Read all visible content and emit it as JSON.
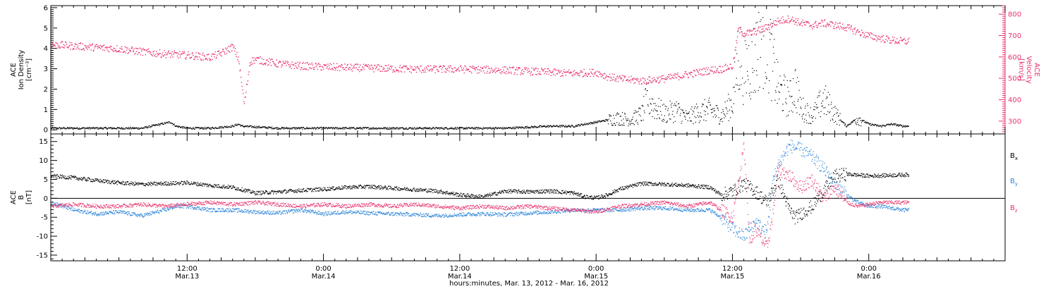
{
  "colors": {
    "black": "#000000",
    "pink": "#e8336b",
    "blue": "#2f86d9"
  },
  "x_axis": {
    "tick_labels": [
      {
        "time": "12:00",
        "date": "Mar.13",
        "hours": 12
      },
      {
        "time": "0:00",
        "date": "Mar.14",
        "hours": 24
      },
      {
        "time": "12:00",
        "date": "Mar.14",
        "hours": 36
      },
      {
        "time": "0:00",
        "date": "Mar.15",
        "hours": 48
      },
      {
        "time": "12:00",
        "date": "Mar.15",
        "hours": 60
      },
      {
        "time": "0:00",
        "date": "Mar.16",
        "hours": 72
      }
    ],
    "caption": "hours:minutes, Mar. 13, 2012 - Mar. 16, 2012"
  },
  "chart_data": [
    {
      "type": "scatter",
      "panel": "top",
      "left_axis": {
        "label_lines": [
          "ACE",
          "Ion Density",
          "[cm⁻³]"
        ],
        "ticks": [
          "0",
          "1",
          "2",
          "3",
          "4",
          "5",
          "6"
        ],
        "ylim": [
          -0.2,
          6.1
        ]
      },
      "right_axis": {
        "label_lines": [
          "ACE",
          "Velocity",
          "[km/s]"
        ],
        "ticks": [
          "300",
          "400",
          "500",
          "600",
          "700",
          "800"
        ],
        "ylim": [
          240,
          840
        ]
      },
      "xlim_hours": [
        0,
        84
      ],
      "series": [
        {
          "axis": "left",
          "color": "black",
          "points": [
            [
              0,
              0.1
            ],
            [
              4,
              0.1
            ],
            [
              8,
              0.1
            ],
            [
              10.5,
              0.4
            ],
            [
              11,
              0.2
            ],
            [
              12,
              0.1
            ],
            [
              14,
              0.1
            ],
            [
              16,
              0.2
            ],
            [
              16.5,
              0.3
            ],
            [
              16.8,
              0.2
            ],
            [
              20,
              0.1
            ],
            [
              24,
              0.1
            ],
            [
              28,
              0.1
            ],
            [
              32,
              0.1
            ],
            [
              36,
              0.1
            ],
            [
              40,
              0.1
            ],
            [
              42,
              0.15
            ],
            [
              44,
              0.2
            ],
            [
              46,
              0.2
            ],
            [
              47,
              0.3
            ],
            [
              48,
              0.4
            ],
            [
              49,
              0.5
            ],
            [
              50,
              0.6
            ],
            [
              51,
              0.5
            ],
            [
              52,
              0.8
            ],
            [
              52.5,
              1.6
            ],
            [
              53,
              1.2
            ],
            [
              54,
              0.8
            ],
            [
              55,
              1.0
            ],
            [
              56,
              0.6
            ],
            [
              57,
              0.9
            ],
            [
              58,
              1.0
            ],
            [
              59,
              0.7
            ],
            [
              60,
              1.4
            ],
            [
              60.5,
              3.8
            ],
            [
              61,
              3.0
            ],
            [
              62,
              3.5
            ],
            [
              62.5,
              5.2
            ],
            [
              63,
              4.5
            ],
            [
              64,
              2.0
            ],
            [
              65,
              1.5
            ],
            [
              65.5,
              2.2
            ],
            [
              66,
              1.1
            ],
            [
              67,
              0.7
            ],
            [
              68,
              1.5
            ],
            [
              69,
              0.8
            ],
            [
              70,
              0.2
            ],
            [
              71,
              0.6
            ],
            [
              72,
              0.3
            ],
            [
              73,
              0.2
            ],
            [
              74,
              0.3
            ],
            [
              75,
              0.2
            ]
          ]
        },
        {
          "axis": "right",
          "color": "pink",
          "points": [
            [
              0,
              660
            ],
            [
              3,
              650
            ],
            [
              6,
              640
            ],
            [
              9,
              620
            ],
            [
              12,
              610
            ],
            [
              14,
              600
            ],
            [
              15,
              620
            ],
            [
              16,
              650
            ],
            [
              16.5,
              590
            ],
            [
              17,
              380
            ],
            [
              17.5,
              580
            ],
            [
              18,
              590
            ],
            [
              20,
              570
            ],
            [
              22,
              560
            ],
            [
              24,
              555
            ],
            [
              28,
              550
            ],
            [
              32,
              545
            ],
            [
              36,
              545
            ],
            [
              40,
              540
            ],
            [
              44,
              530
            ],
            [
              46,
              525
            ],
            [
              48,
              530
            ],
            [
              49,
              510
            ],
            [
              50,
              500
            ],
            [
              52,
              490
            ],
            [
              54,
              500
            ],
            [
              56,
              520
            ],
            [
              58,
              540
            ],
            [
              59,
              545
            ],
            [
              60,
              560
            ],
            [
              60.5,
              730
            ],
            [
              61,
              710
            ],
            [
              62,
              720
            ],
            [
              63,
              740
            ],
            [
              64,
              770
            ],
            [
              65,
              780
            ],
            [
              66,
              760
            ],
            [
              67,
              750
            ],
            [
              68,
              760
            ],
            [
              69,
              750
            ],
            [
              70,
              740
            ],
            [
              71,
              720
            ],
            [
              72,
              700
            ],
            [
              73,
              690
            ],
            [
              74,
              680
            ],
            [
              75,
              675
            ]
          ]
        }
      ]
    },
    {
      "type": "scatter",
      "panel": "bottom",
      "left_axis": {
        "label_lines": [
          "ACE",
          "B",
          "[nT]"
        ],
        "ticks": [
          "-15",
          "-10",
          "-5",
          "0",
          "5",
          "10",
          "15"
        ],
        "ylim": [
          -16.5,
          17
        ]
      },
      "xlim_hours": [
        0,
        84
      ],
      "legend_placement": "right",
      "series": [
        {
          "name": "Bx",
          "name_base": "B",
          "name_sub": "x",
          "color": "black",
          "points": [
            [
              0,
              6
            ],
            [
              2,
              5.5
            ],
            [
              4,
              4.8
            ],
            [
              6,
              4.2
            ],
            [
              8,
              3.8
            ],
            [
              10,
              4.0
            ],
            [
              12,
              4.2
            ],
            [
              14,
              3.5
            ],
            [
              16,
              3.0
            ],
            [
              18,
              1.5
            ],
            [
              20,
              1.8
            ],
            [
              22,
              2.2
            ],
            [
              24,
              2.5
            ],
            [
              26,
              3.0
            ],
            [
              28,
              3.2
            ],
            [
              30,
              2.8
            ],
            [
              32,
              2.4
            ],
            [
              34,
              2.0
            ],
            [
              36,
              1.0
            ],
            [
              38,
              0.5
            ],
            [
              40,
              2.0
            ],
            [
              42,
              1.8
            ],
            [
              44,
              2.0
            ],
            [
              46,
              1.5
            ],
            [
              47,
              0.5
            ],
            [
              48,
              0.2
            ],
            [
              49,
              1.0
            ],
            [
              50,
              2.5
            ],
            [
              52,
              4.0
            ],
            [
              54,
              3.8
            ],
            [
              56,
              3.5
            ],
            [
              58,
              3.0
            ],
            [
              59,
              1.0
            ],
            [
              60,
              2.0
            ],
            [
              61,
              4.0
            ],
            [
              62,
              2.0
            ],
            [
              63,
              -1.0
            ],
            [
              64,
              5.0
            ],
            [
              65,
              -3.0
            ],
            [
              65.5,
              -5.0
            ],
            [
              66,
              -4.0
            ],
            [
              67,
              -2.0
            ],
            [
              68,
              2.0
            ],
            [
              69,
              6.0
            ],
            [
              70,
              6.5
            ],
            [
              72,
              6.0
            ],
            [
              74,
              6.2
            ],
            [
              75,
              6.3
            ]
          ]
        },
        {
          "name": "By",
          "name_base": "B",
          "name_sub": "y",
          "color": "blue",
          "points": [
            [
              0,
              -1
            ],
            [
              2,
              -3
            ],
            [
              4,
              -4
            ],
            [
              6,
              -3.5
            ],
            [
              8,
              -4.5
            ],
            [
              10,
              -3
            ],
            [
              11,
              -2
            ],
            [
              12,
              -2
            ],
            [
              14,
              -3
            ],
            [
              16,
              -3
            ],
            [
              18,
              -3.5
            ],
            [
              20,
              -3.8
            ],
            [
              22,
              -3
            ],
            [
              24,
              -4
            ],
            [
              26,
              -3.5
            ],
            [
              28,
              -3.8
            ],
            [
              30,
              -4
            ],
            [
              32,
              -4.2
            ],
            [
              34,
              -4.5
            ],
            [
              36,
              -4.2
            ],
            [
              38,
              -4
            ],
            [
              40,
              -4.2
            ],
            [
              42,
              -3.8
            ],
            [
              44,
              -3.5
            ],
            [
              46,
              -3
            ],
            [
              48,
              -3
            ],
            [
              50,
              -3
            ],
            [
              52,
              -2.5
            ],
            [
              54,
              -2.5
            ],
            [
              56,
              -3
            ],
            [
              58,
              -3
            ],
            [
              59,
              -5
            ],
            [
              60,
              -8
            ],
            [
              61,
              -10
            ],
            [
              62,
              -6
            ],
            [
              63,
              -9
            ],
            [
              63.5,
              4
            ],
            [
              64,
              9
            ],
            [
              65,
              14
            ],
            [
              66,
              13
            ],
            [
              67,
              11
            ],
            [
              68,
              8
            ],
            [
              69,
              4
            ],
            [
              70,
              1
            ],
            [
              71,
              -1
            ],
            [
              72,
              -2
            ],
            [
              73,
              -2
            ],
            [
              74,
              -2.5
            ],
            [
              75,
              -3
            ]
          ]
        },
        {
          "name": "Bz",
          "name_base": "B",
          "name_sub": "z",
          "color": "pink",
          "points": [
            [
              0,
              -2
            ],
            [
              2,
              -1.5
            ],
            [
              4,
              -2
            ],
            [
              6,
              -2
            ],
            [
              8,
              -1.5
            ],
            [
              10,
              -2
            ],
            [
              12,
              -1.5
            ],
            [
              14,
              -1
            ],
            [
              16,
              -1.5
            ],
            [
              18,
              -1
            ],
            [
              20,
              -1.5
            ],
            [
              22,
              -2
            ],
            [
              24,
              -1.5
            ],
            [
              26,
              -2
            ],
            [
              28,
              -1.5
            ],
            [
              30,
              -2
            ],
            [
              32,
              -1.5
            ],
            [
              34,
              -2
            ],
            [
              36,
              -2.5
            ],
            [
              38,
              -2
            ],
            [
              40,
              -2.5
            ],
            [
              42,
              -2
            ],
            [
              44,
              -2.5
            ],
            [
              46,
              -3
            ],
            [
              48,
              -3.5
            ],
            [
              50,
              -2
            ],
            [
              52,
              -1.5
            ],
            [
              54,
              -1
            ],
            [
              56,
              -2
            ],
            [
              58,
              -1
            ],
            [
              59,
              -3
            ],
            [
              60,
              -5
            ],
            [
              61,
              14
            ],
            [
              61.5,
              -12
            ],
            [
              62,
              -8
            ],
            [
              63,
              -13
            ],
            [
              63.5,
              -5
            ],
            [
              64,
              8
            ],
            [
              65,
              6
            ],
            [
              66,
              3
            ],
            [
              67,
              5
            ],
            [
              68,
              0
            ],
            [
              69,
              3
            ],
            [
              70,
              -1
            ],
            [
              71,
              -2
            ],
            [
              72,
              -1.5
            ],
            [
              73,
              -1
            ],
            [
              74,
              -1
            ],
            [
              75,
              -1
            ]
          ]
        }
      ]
    }
  ]
}
